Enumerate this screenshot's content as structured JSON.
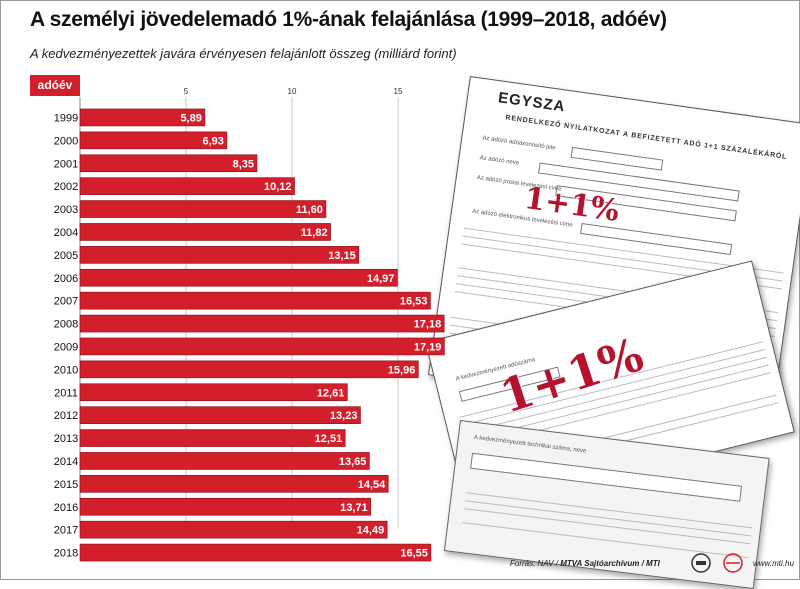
{
  "title": "A személyi jövedelemadó 1%-ának felajánlása (1999–2018, adóév)",
  "subtitle": "A kedvezményezettek javára érvényesen felajánlott összeg (milliárd forint)",
  "badge": "adóév",
  "source": {
    "prefix": "Forrás: NAV / ",
    "bold": "MTVA Sajtóarchívum / MTI",
    "site": "www.mti.hu"
  },
  "logos": [
    "mtva-logo-icon",
    "mti-logo-icon"
  ],
  "colors": {
    "bar": "#d21f2b",
    "badge": "#d21f2b",
    "grid": "#c8c8c8"
  },
  "form_texts": {
    "form_title": "EGYSZA",
    "form_heading": "RENDELKEZŐ NYILATKOZAT A BEFIZETETT ADÓ 1+1 SZÁZALÉKÁRÓL",
    "stamp": "1+1%",
    "field_1": "Az adózó adóazonosító jele",
    "field_2": "Az adózó neve",
    "field_3": "Az adózó postai levelezési címe",
    "field_4": "Az adózó elektronikus levelezési címe",
    "field_5": "A kedvezményezett adószáma",
    "field_6": "A kedvezményezett technikai száma, neve"
  },
  "chart_data": {
    "type": "bar",
    "orientation": "horizontal",
    "categories": [
      "1999",
      "2000",
      "2001",
      "2002",
      "2003",
      "2004",
      "2005",
      "2006",
      "2007",
      "2008",
      "2009",
      "2010",
      "2011",
      "2012",
      "2013",
      "2014",
      "2015",
      "2016",
      "2017",
      "2018"
    ],
    "values": [
      5.89,
      6.93,
      8.35,
      10.12,
      11.6,
      11.82,
      13.15,
      14.97,
      16.53,
      17.18,
      17.19,
      15.96,
      12.61,
      13.23,
      12.51,
      13.65,
      14.54,
      13.71,
      14.49,
      16.55
    ],
    "value_labels": [
      "5,89",
      "6,93",
      "8,35",
      "10,12",
      "11,60",
      "11,82",
      "13,15",
      "14,97",
      "16,53",
      "17,18",
      "17,19",
      "15,96",
      "12,61",
      "13,23",
      "12,51",
      "13,65",
      "14,54",
      "13,71",
      "14,49",
      "16,55"
    ],
    "x_ticks": [
      5,
      10,
      15
    ],
    "xlim": [
      0,
      20
    ],
    "grid": true,
    "xlabel": "",
    "ylabel": ""
  }
}
